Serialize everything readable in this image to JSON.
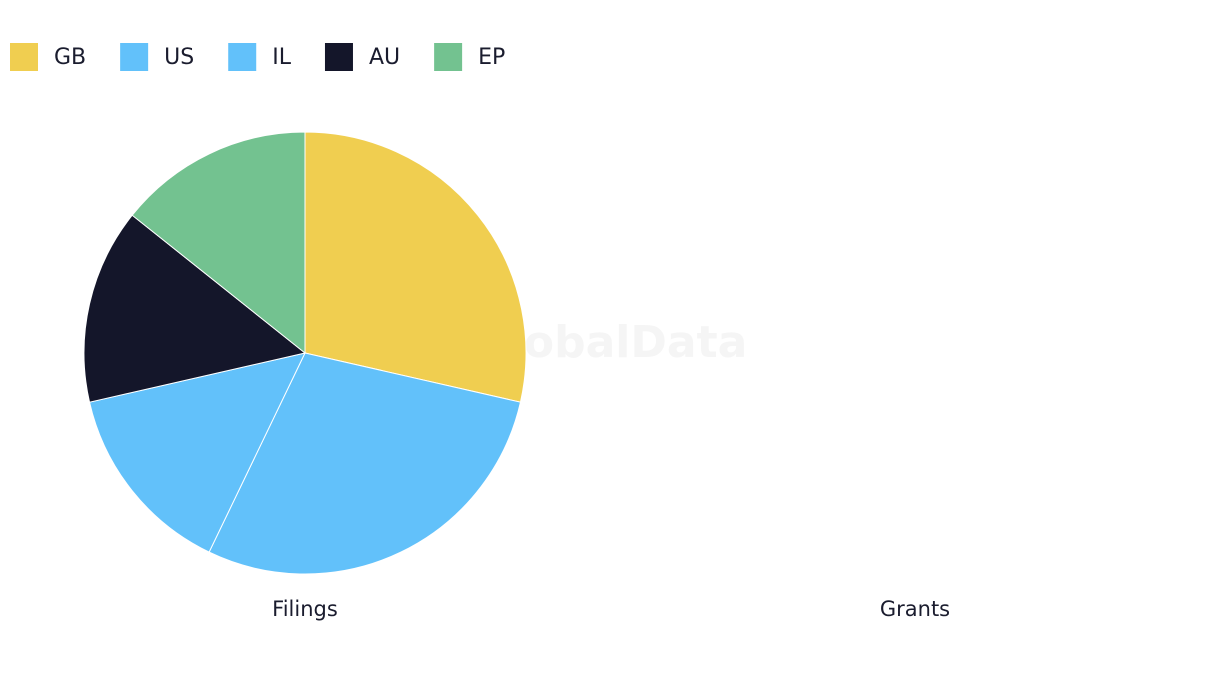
{
  "chart_data": [
    {
      "type": "pie",
      "title": "Filings",
      "categories": [
        "GB",
        "US",
        "IL",
        "AU",
        "EP"
      ],
      "values": [
        2,
        2,
        1,
        1,
        1
      ],
      "colors": [
        "#f0ce50",
        "#62c1fa",
        "#62c1fa",
        "#14162a",
        "#73c290"
      ]
    },
    {
      "type": "pie",
      "title": "Grants"
    }
  ],
  "watermark": "GlobalData"
}
